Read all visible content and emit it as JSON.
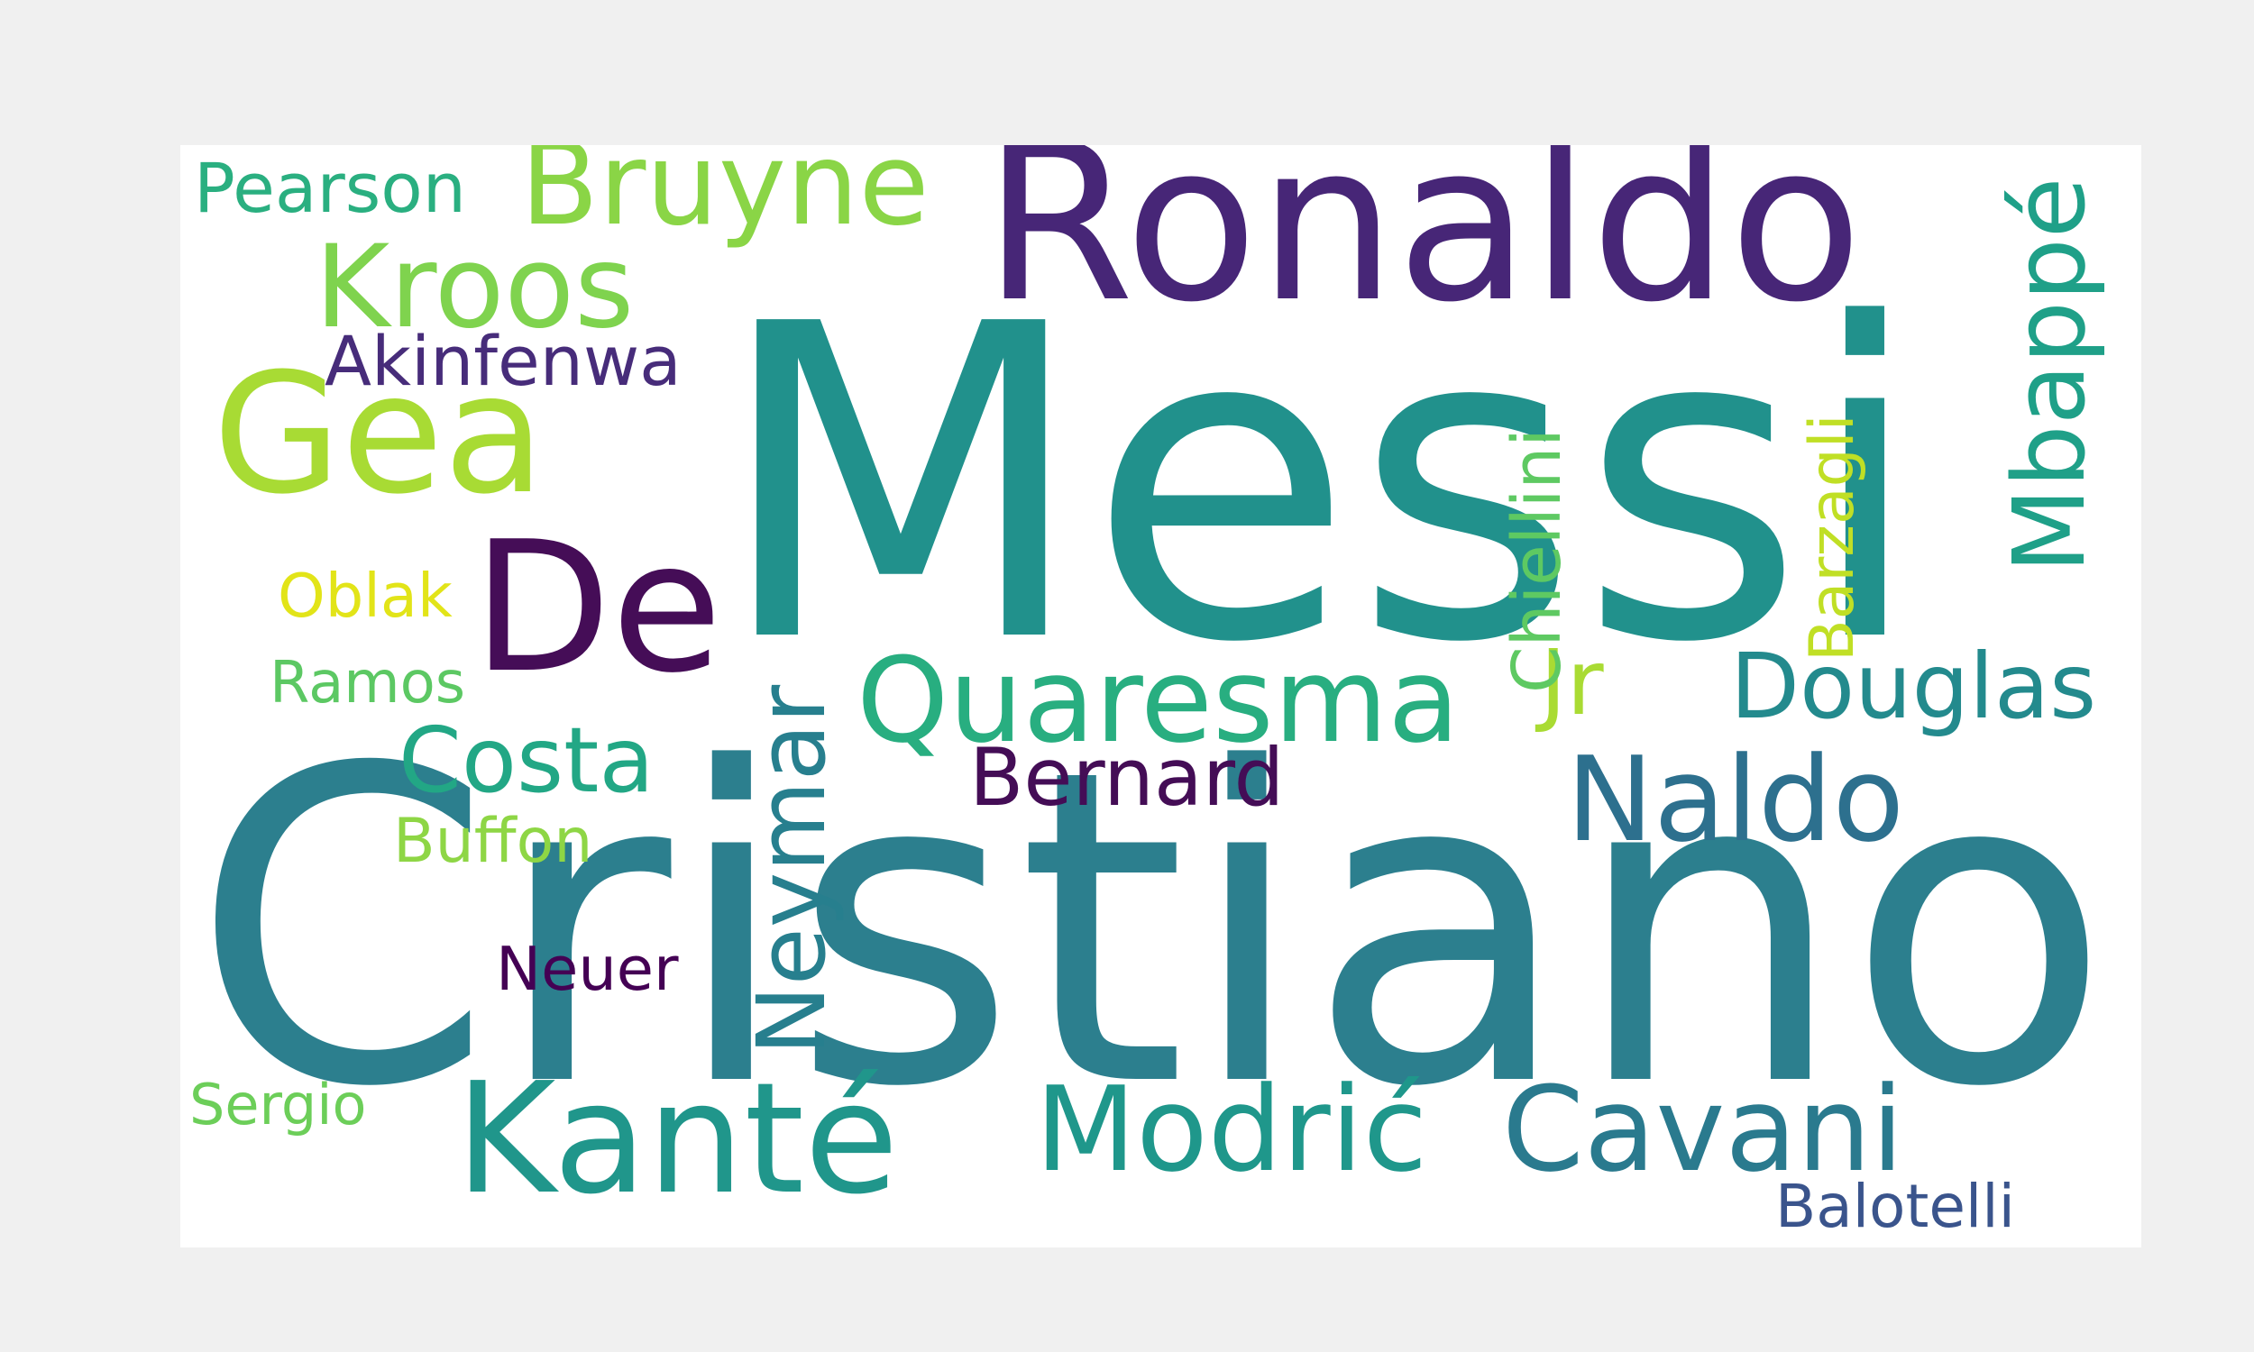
{
  "words": {
    "messi": {
      "text": "Messi",
      "color": "#21918c"
    },
    "cristiano": {
      "text": "Cristiano",
      "color": "#2c7f8e"
    },
    "ronaldo": {
      "text": "Ronaldo",
      "color": "#472677"
    },
    "gea": {
      "text": "Gea",
      "color": "#a8db34"
    },
    "de": {
      "text": "De",
      "color": "#450d57"
    },
    "kante": {
      "text": "Kanté",
      "color": "#20968b"
    },
    "quaresma": {
      "text": "Quaresma",
      "color": "#28ae80"
    },
    "modric": {
      "text": "Modrić",
      "color": "#1f978b"
    },
    "cavani": {
      "text": "Cavani",
      "color": "#2a7a8e"
    },
    "naldo": {
      "text": "Naldo",
      "color": "#2d708e"
    },
    "bruyne": {
      "text": "Bruyne",
      "color": "#8ad546"
    },
    "kroos": {
      "text": "Kroos",
      "color": "#7fd34e"
    },
    "costa": {
      "text": "Costa",
      "color": "#22a785"
    },
    "douglas": {
      "text": "Douglas",
      "color": "#238a8d"
    },
    "jr": {
      "text": "Jr",
      "color": "#a9db33"
    },
    "bernard": {
      "text": "Bernard",
      "color": "#440d56"
    },
    "akinfenwa": {
      "text": "Akinfenwa",
      "color": "#472c7a"
    },
    "pearson": {
      "text": "Pearson",
      "color": "#2aaf80"
    },
    "buffon": {
      "text": "Buffon",
      "color": "#8ed645"
    },
    "ramos": {
      "text": "Ramos",
      "color": "#5cc863"
    },
    "oblak": {
      "text": "Oblak",
      "color": "#e2e418"
    },
    "sergio": {
      "text": "Sergio",
      "color": "#6cce59"
    },
    "neuer": {
      "text": "Neuer",
      "color": "#440154"
    },
    "balotelli": {
      "text": "Balotelli",
      "color": "#3a548c"
    },
    "mbappe": {
      "text": "Mbappé",
      "color": "#1fa088"
    },
    "neymar": {
      "text": "Neymar",
      "color": "#277f8e"
    },
    "chiellini": {
      "text": "Chiellini",
      "color": "#5ec962"
    },
    "barzagli": {
      "text": "Barzagli",
      "color": "#c0df25"
    }
  },
  "colors": {
    "figure_background": "#f0f0f0",
    "cloud_background": "#ffffff"
  }
}
